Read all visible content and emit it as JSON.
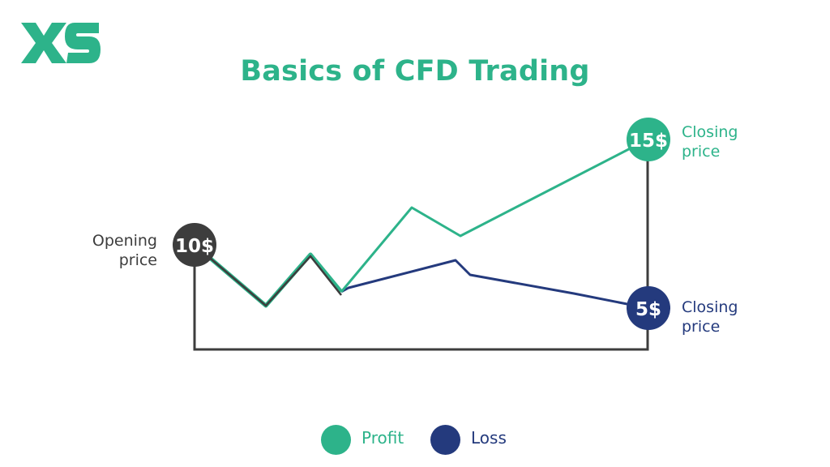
{
  "brand": {
    "logo_text": "XS",
    "logo_color": "#2db38a"
  },
  "title": "Basics of CFD Trading",
  "opening": {
    "price": "10$",
    "label": "Opening price",
    "color": "#3d3d3d"
  },
  "profit_close": {
    "price": "15$",
    "label": "Closing price",
    "color": "#2db38a"
  },
  "loss_close": {
    "price": "5$",
    "label": "Closing price",
    "color": "#243a7d"
  },
  "legend": [
    {
      "label": "Profit",
      "color": "#2db38a"
    },
    {
      "label": "Loss",
      "color": "#243a7d"
    }
  ]
}
